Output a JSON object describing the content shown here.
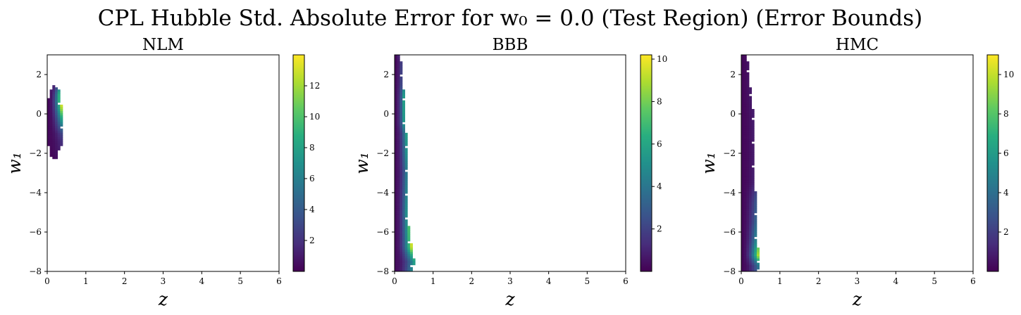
{
  "figure": {
    "suptitle": "CPL Hubble Std. Absolute Error for w₀ = 0.0 (Test Region) (Error Bounds)"
  },
  "chart_data": [
    {
      "type": "heatmap",
      "title": "NLM",
      "xlabel": "z",
      "ylabel": "w₁",
      "xlim": [
        0,
        6
      ],
      "ylim": [
        -8,
        3
      ],
      "x_ticks": [
        "0",
        "1",
        "2",
        "3",
        "4",
        "5",
        "6"
      ],
      "y_ticks": [
        "2",
        "0",
        "−2",
        "−4",
        "−6",
        "−8"
      ],
      "colorbar": {
        "range": [
          0,
          14
        ],
        "ticks": [
          "2",
          "4",
          "6",
          "8",
          "10",
          "12"
        ],
        "colormap": "viridis"
      },
      "region": [
        {
          "w1": 1.4,
          "z0": 0.15,
          "z1": 0.22,
          "v0": 1.5,
          "v1": 2.5
        },
        {
          "w1": 1.2,
          "z0": 0.1,
          "z1": 0.3,
          "v0": 1.0,
          "v1": 7.0
        },
        {
          "w1": 1.0,
          "z0": 0.05,
          "z1": 0.33,
          "v0": 0.5,
          "v1": 11.0
        },
        {
          "w1": 0.6,
          "z0": 0.02,
          "z1": 0.36,
          "v0": 0.3,
          "v1": 13.5
        },
        {
          "w1": 0.2,
          "z0": 0.02,
          "z1": 0.38,
          "v0": 0.3,
          "v1": 12.5
        },
        {
          "w1": -0.2,
          "z0": 0.02,
          "z1": 0.38,
          "v0": 0.3,
          "v1": 9.0
        },
        {
          "w1": -0.6,
          "z0": 0.02,
          "z1": 0.38,
          "v0": 0.3,
          "v1": 6.0
        },
        {
          "w1": -1.0,
          "z0": 0.02,
          "z1": 0.38,
          "v0": 0.3,
          "v1": 3.0
        },
        {
          "w1": -1.4,
          "z0": 0.02,
          "z1": 0.38,
          "v0": 0.3,
          "v1": 2.0
        },
        {
          "w1": -1.8,
          "z0": 0.04,
          "z1": 0.36,
          "v0": 0.3,
          "v1": 1.5
        },
        {
          "w1": -2.0,
          "z0": 0.08,
          "z1": 0.28,
          "v0": 0.3,
          "v1": 1.0
        },
        {
          "w1": -2.3,
          "z0": 0.12,
          "z1": 0.28,
          "v0": 0.3,
          "v1": 0.8
        }
      ]
    },
    {
      "type": "heatmap",
      "title": "BBB",
      "xlabel": "z",
      "ylabel": "w₁",
      "xlim": [
        0,
        6
      ],
      "ylim": [
        -8,
        3
      ],
      "x_ticks": [
        "0",
        "1",
        "2",
        "3",
        "4",
        "5",
        "6"
      ],
      "y_ticks": [
        "2",
        "0",
        "−2",
        "−4",
        "−6",
        "−8"
      ],
      "colorbar": {
        "range": [
          0,
          10.2
        ],
        "ticks": [
          "2",
          "4",
          "6",
          "8",
          "10"
        ],
        "colormap": "viridis"
      },
      "region": [
        {
          "w1": 3.0,
          "z0": 0.0,
          "z1": 0.12,
          "v0": 0.2,
          "v1": 1.5
        },
        {
          "w1": 2.6,
          "z0": 0.0,
          "z1": 0.18,
          "v0": 0.2,
          "v1": 2.0
        },
        {
          "w1": 1.5,
          "z0": 0.0,
          "z1": 0.22,
          "v0": 0.3,
          "v1": 3.5
        },
        {
          "w1": 0.8,
          "z0": 0.0,
          "z1": 0.25,
          "v0": 0.3,
          "v1": 6.5
        },
        {
          "w1": -0.5,
          "z0": 0.0,
          "z1": 0.25,
          "v0": 0.3,
          "v1": 6.0
        },
        {
          "w1": -1.0,
          "z0": 0.0,
          "z1": 0.3,
          "v0": 0.3,
          "v1": 5.5
        },
        {
          "w1": -2.0,
          "z0": 0.0,
          "z1": 0.3,
          "v0": 0.3,
          "v1": 5.0
        },
        {
          "w1": -3.0,
          "z0": 0.0,
          "z1": 0.32,
          "v0": 0.3,
          "v1": 4.5
        },
        {
          "w1": -4.0,
          "z0": 0.0,
          "z1": 0.32,
          "v0": 0.3,
          "v1": 5.0
        },
        {
          "w1": -5.0,
          "z0": 0.0,
          "z1": 0.33,
          "v0": 0.3,
          "v1": 6.0
        },
        {
          "w1": -6.0,
          "z0": 0.0,
          "z1": 0.38,
          "v0": 0.3,
          "v1": 7.5
        },
        {
          "w1": -6.8,
          "z0": 0.0,
          "z1": 0.45,
          "v0": 0.3,
          "v1": 10.0
        },
        {
          "w1": -7.5,
          "z0": 0.0,
          "z1": 0.52,
          "v0": 0.3,
          "v1": 6.0
        },
        {
          "w1": -8.0,
          "z0": 0.0,
          "z1": 0.45,
          "v0": 0.3,
          "v1": 5.0
        }
      ]
    },
    {
      "type": "heatmap",
      "title": "HMC",
      "xlabel": "z",
      "ylabel": "w₁",
      "xlim": [
        0,
        6
      ],
      "ylim": [
        -8,
        3
      ],
      "x_ticks": [
        "0",
        "1",
        "2",
        "3",
        "4",
        "5",
        "6"
      ],
      "y_ticks": [
        "2",
        "0",
        "−2",
        "−4",
        "−6",
        "−8"
      ],
      "colorbar": {
        "range": [
          0,
          11
        ],
        "ticks": [
          "2",
          "4",
          "6",
          "8",
          "10"
        ],
        "colormap": "viridis"
      },
      "region": [
        {
          "w1": 3.0,
          "z0": 0.0,
          "z1": 0.15,
          "v0": 0.2,
          "v1": 0.5
        },
        {
          "w1": 2.5,
          "z0": 0.0,
          "z1": 0.18,
          "v0": 0.2,
          "v1": 0.6
        },
        {
          "w1": 1.0,
          "z0": 0.0,
          "z1": 0.25,
          "v0": 0.2,
          "v1": 0.8
        },
        {
          "w1": 0.0,
          "z0": 0.0,
          "z1": 0.32,
          "v0": 0.2,
          "v1": 0.9
        },
        {
          "w1": -2.0,
          "z0": 0.0,
          "z1": 0.36,
          "v0": 0.2,
          "v1": 1.0
        },
        {
          "w1": -3.5,
          "z0": 0.0,
          "z1": 0.36,
          "v0": 0.2,
          "v1": 1.2
        },
        {
          "w1": -4.5,
          "z0": 0.0,
          "z1": 0.38,
          "v0": 0.2,
          "v1": 3.0
        },
        {
          "w1": -5.5,
          "z0": 0.0,
          "z1": 0.4,
          "v0": 0.2,
          "v1": 4.0
        },
        {
          "w1": -6.5,
          "z0": 0.0,
          "z1": 0.42,
          "v0": 0.2,
          "v1": 6.5
        },
        {
          "w1": -7.2,
          "z0": 0.0,
          "z1": 0.45,
          "v0": 0.2,
          "v1": 10.5
        },
        {
          "w1": -7.7,
          "z0": 0.0,
          "z1": 0.48,
          "v0": 0.2,
          "v1": 5.0
        },
        {
          "w1": -8.0,
          "z0": 0.0,
          "z1": 0.42,
          "v0": 0.2,
          "v1": 3.5
        }
      ]
    }
  ]
}
